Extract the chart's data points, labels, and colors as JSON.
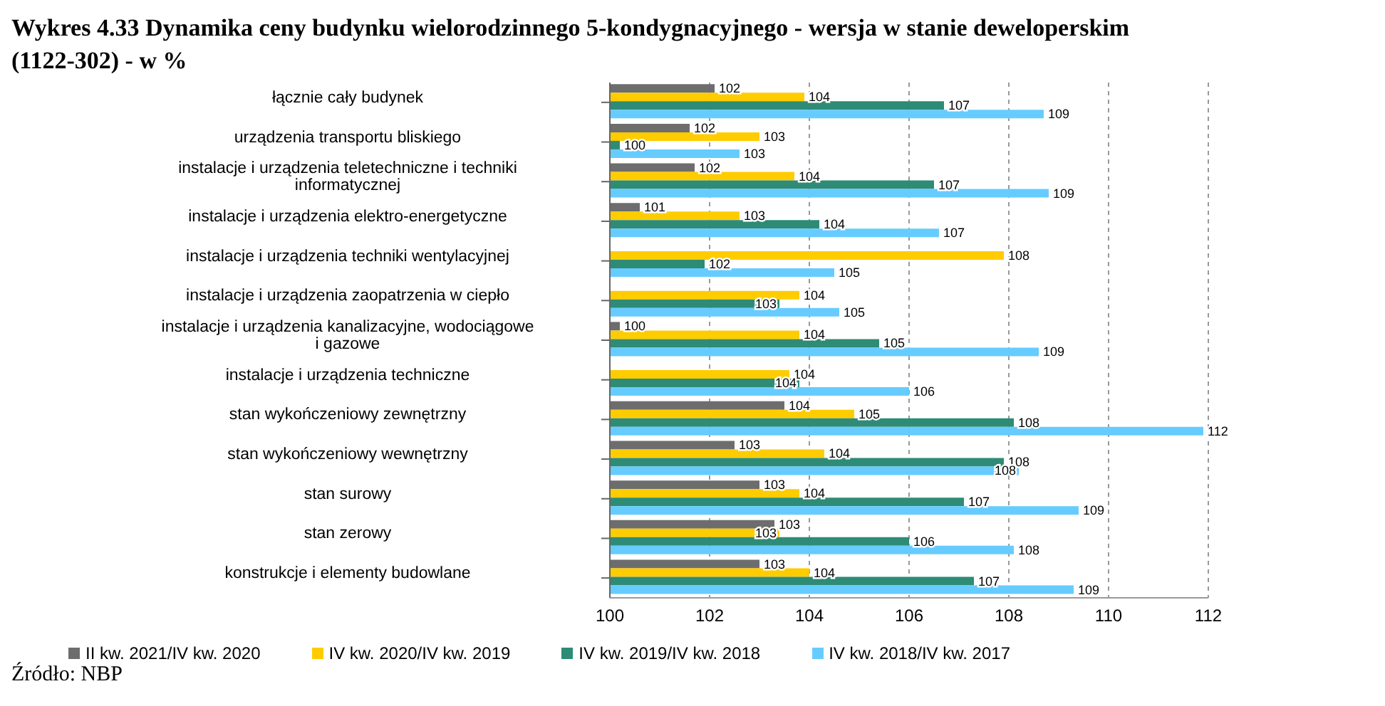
{
  "chart_data": {
    "type": "bar",
    "orientation": "horizontal",
    "title": "Wykres 4.33 Dynamika ceny budynku wielorodzinnego 5-kondygnacyjnego - wersja w stanie deweloperskim (1122-302) - w %",
    "categories": [
      "łącznie cały budynek",
      "urządzenia transportu bliskiego",
      "instalacje i urządzenia teletechniczne i techniki informatycznej",
      "instalacje i urządzenia elektro-energetyczne",
      "instalacje i urządzenia techniki wentylacyjnej",
      "instalacje i urządzenia zaopatrzenia w ciepło",
      "instalacje i urządzenia kanalizacyjne, wodociągowe i gazowe",
      "instalacje i urządzenia techniczne",
      "stan wykończeniowy zewnętrzny",
      "stan wykończeniowy wewnętrzny",
      "stan surowy",
      "stan zerowy",
      "konstrukcje i elementy budowlane"
    ],
    "series": [
      {
        "name": "II kw. 2021/IV kw. 2020",
        "color": "#6d6d6d",
        "values": [
          102.1,
          101.6,
          101.7,
          100.6,
          null,
          null,
          100.2,
          null,
          103.5,
          102.5,
          103.0,
          103.3,
          103.0
        ],
        "value_labels": [
          "102",
          "102",
          "102",
          "101",
          null,
          null,
          "100",
          null,
          "104",
          "103",
          "103",
          "103",
          "103"
        ]
      },
      {
        "name": "IV kw. 2020/IV kw. 2019",
        "color": "#ffcc00",
        "values": [
          103.9,
          103.0,
          103.7,
          102.6,
          107.9,
          103.8,
          103.8,
          103.6,
          104.9,
          104.3,
          103.8,
          103.4,
          104.0
        ],
        "value_labels": [
          "104",
          "103",
          "104",
          "103",
          "108",
          "104",
          "104",
          "104",
          "105",
          "104",
          "104",
          "103",
          "104"
        ]
      },
      {
        "name": "IV kw. 2019/IV kw. 2018",
        "color": "#2e8b76",
        "values": [
          106.7,
          100.2,
          106.5,
          104.2,
          101.9,
          103.4,
          105.4,
          103.8,
          108.1,
          107.9,
          107.1,
          106.0,
          107.3
        ],
        "value_labels": [
          "107",
          "100",
          "107",
          "104",
          "102",
          "103",
          "105",
          "104",
          "108",
          "108",
          "107",
          "106",
          "107"
        ]
      },
      {
        "name": "IV kw. 2018/IV kw. 2017",
        "color": "#66ccff",
        "values": [
          108.7,
          102.6,
          108.8,
          106.6,
          104.5,
          104.6,
          108.6,
          106.0,
          111.9,
          108.2,
          109.4,
          108.1,
          109.3
        ],
        "value_labels": [
          "109",
          "103",
          "109",
          "107",
          "105",
          "105",
          "109",
          "106",
          "112",
          "108",
          "109",
          "108",
          "109"
        ]
      }
    ],
    "xlim": [
      100,
      112
    ],
    "xticks": [
      100,
      102,
      104,
      106,
      108,
      110,
      112
    ],
    "grid": "x",
    "legend": "bottom",
    "annotations": [
      "Źródło: NBP"
    ]
  }
}
